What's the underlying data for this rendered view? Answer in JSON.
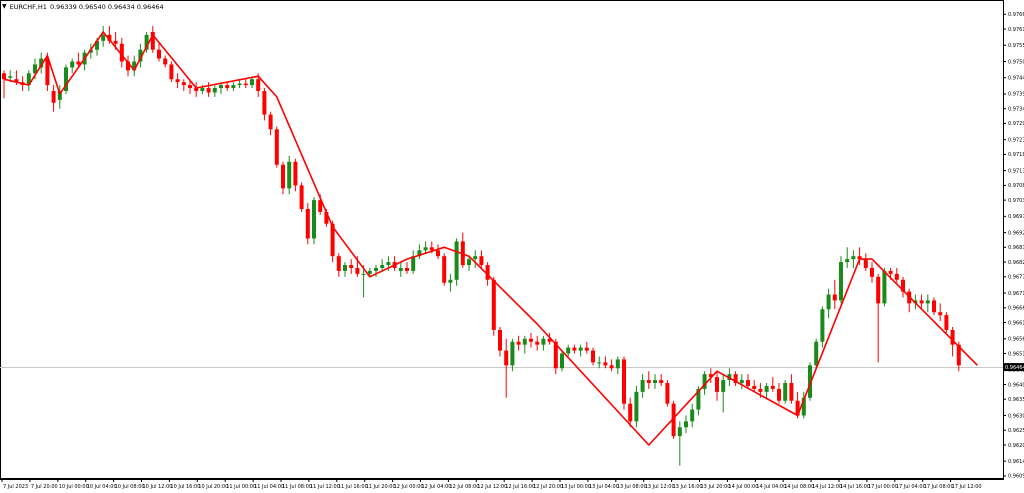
{
  "header": {
    "symbol": "EURCHF,H1",
    "ohlc": "0.96339 0.96540 0.96434 0.96464"
  },
  "colors": {
    "bull": "#1a8a1a",
    "bear": "#ff0000",
    "zigzag": "#ff0000",
    "grid": "#dddddd",
    "axis": "#000000",
    "price_tag_bg": "#000000"
  },
  "chart_data": {
    "type": "candlestick",
    "symbol": "EURCHF",
    "timeframe": "H1",
    "ylim": [
      0.96088,
      0.97661
    ],
    "last_price": 0.96464,
    "last_price_label": "0.96464",
    "y_ticks": [
      "0.97660",
      "0.97610",
      "0.97555",
      "0.97500",
      "0.97445",
      "0.97390",
      "0.97340",
      "0.97290",
      "0.97235",
      "0.97185",
      "0.97130",
      "0.97080",
      "0.97030",
      "0.96975",
      "0.96920",
      "0.96870",
      "0.96820",
      "0.96770",
      "0.96715",
      "0.96665",
      "0.96615",
      "0.96560",
      "0.96510",
      "0.96455",
      "0.96405",
      "0.96355",
      "0.96300",
      "0.96250",
      "0.96200",
      "0.96145",
      "0.96095"
    ],
    "x_ticks": [
      "7 Jul 2023",
      "7 Jul 20:00",
      "10 Jul 00:00",
      "10 Jul 04:00",
      "10 Jul 08:00",
      "10 Jul 12:00",
      "10 Jul 16:00",
      "10 Jul 20:00",
      "11 Jul 00:00",
      "11 Jul 04:00",
      "11 Jul 08:00",
      "11 Jul 12:00",
      "11 Jul 16:00",
      "11 Jul 20:00",
      "12 Jul 00:00",
      "12 Jul 04:00",
      "12 Jul 08:00",
      "12 Jul 12:00",
      "12 Jul 16:00",
      "12 Jul 20:00",
      "13 Jul 00:00",
      "13 Jul 04:00",
      "13 Jul 08:00",
      "13 Jul 12:00",
      "13 Jul 16:00",
      "13 Jul 20:00",
      "14 Jul 00:00",
      "14 Jul 04:00",
      "14 Jul 08:00",
      "14 Jul 12:00",
      "14 Jul 16:00",
      "17 Jul 00:00",
      "17 Jul 04:00",
      "17 Jul 08:00",
      "17 Jul 12:00"
    ],
    "zigzag": [
      [
        0,
        0.9744
      ],
      [
        4,
        0.9742
      ],
      [
        7,
        0.9752
      ],
      [
        9,
        0.9739
      ],
      [
        16,
        0.976
      ],
      [
        21,
        0.9747
      ],
      [
        24,
        0.9759
      ],
      [
        31,
        0.9741
      ],
      [
        41,
        0.9745
      ],
      [
        44,
        0.9738
      ],
      [
        53,
        0.9694
      ],
      [
        59,
        0.9677
      ],
      [
        65,
        0.9683
      ],
      [
        71,
        0.9687
      ],
      [
        75,
        0.9684
      ],
      [
        86,
        0.9661
      ],
      [
        104,
        0.962
      ],
      [
        115,
        0.9645
      ],
      [
        128,
        0.963
      ],
      [
        138,
        0.9683
      ],
      [
        140,
        0.9683
      ],
      [
        157,
        0.9647
      ]
    ],
    "candles": [
      [
        0.9746,
        0.9747,
        0.97375,
        0.9744
      ],
      [
        0.97445,
        0.9747,
        0.9743,
        0.9745
      ],
      [
        0.9744,
        0.9747,
        0.9742,
        0.9743
      ],
      [
        0.9743,
        0.9745,
        0.974,
        0.9742
      ],
      [
        0.9742,
        0.9747,
        0.974,
        0.9746
      ],
      [
        0.9746,
        0.9751,
        0.9744,
        0.9749
      ],
      [
        0.9748,
        0.9753,
        0.9746,
        0.9751
      ],
      [
        0.9751,
        0.9753,
        0.974,
        0.9742
      ],
      [
        0.974,
        0.9742,
        0.9733,
        0.9736
      ],
      [
        0.9737,
        0.9742,
        0.9734,
        0.974
      ],
      [
        0.974,
        0.9749,
        0.9739,
        0.9748
      ],
      [
        0.9748,
        0.9751,
        0.9746,
        0.975
      ],
      [
        0.975,
        0.9753,
        0.9748,
        0.9749
      ],
      [
        0.9749,
        0.9754,
        0.9747,
        0.9753
      ],
      [
        0.9753,
        0.9756,
        0.9751,
        0.9754
      ],
      [
        0.9754,
        0.9758,
        0.9752,
        0.9757
      ],
      [
        0.9757,
        0.9762,
        0.9755,
        0.9759
      ],
      [
        0.9759,
        0.9762,
        0.9756,
        0.9757
      ],
      [
        0.9757,
        0.976,
        0.9754,
        0.9756
      ],
      [
        0.9756,
        0.9758,
        0.9748,
        0.975
      ],
      [
        0.975,
        0.9752,
        0.9745,
        0.9747
      ],
      [
        0.9747,
        0.9752,
        0.9745,
        0.975
      ],
      [
        0.975,
        0.9756,
        0.9748,
        0.9754
      ],
      [
        0.9754,
        0.976,
        0.9753,
        0.9759
      ],
      [
        0.976,
        0.9762,
        0.9753,
        0.9754
      ],
      [
        0.9754,
        0.9756,
        0.975,
        0.9751
      ],
      [
        0.9751,
        0.9752,
        0.9748,
        0.9749
      ],
      [
        0.9749,
        0.975,
        0.9743,
        0.9744
      ],
      [
        0.9744,
        0.9746,
        0.9741,
        0.9743
      ],
      [
        0.9743,
        0.9744,
        0.974,
        0.9742
      ],
      [
        0.9742,
        0.9744,
        0.9739,
        0.9741
      ],
      [
        0.9741,
        0.9743,
        0.9738,
        0.974
      ],
      [
        0.974,
        0.9742,
        0.9739,
        0.9741
      ],
      [
        0.9741,
        0.9743,
        0.9738,
        0.97395
      ],
      [
        0.97395,
        0.9742,
        0.9738,
        0.9741
      ],
      [
        0.9741,
        0.9743,
        0.9739,
        0.9742
      ],
      [
        0.9742,
        0.9743,
        0.974,
        0.9741
      ],
      [
        0.9741,
        0.9743,
        0.974,
        0.9742
      ],
      [
        0.9742,
        0.9744,
        0.9741,
        0.97425
      ],
      [
        0.97425,
        0.9744,
        0.9741,
        0.9742
      ],
      [
        0.9742,
        0.9745,
        0.9741,
        0.9744
      ],
      [
        0.9744,
        0.9746,
        0.9738,
        0.974
      ],
      [
        0.974,
        0.9741,
        0.973,
        0.9732
      ],
      [
        0.9732,
        0.9733,
        0.9725,
        0.9727
      ],
      [
        0.9727,
        0.9728,
        0.9714,
        0.9715
      ],
      [
        0.9715,
        0.9716,
        0.9705,
        0.9707
      ],
      [
        0.9707,
        0.9718,
        0.9705,
        0.9716
      ],
      [
        0.9716,
        0.9717,
        0.9706,
        0.9708
      ],
      [
        0.9708,
        0.9709,
        0.9699,
        0.97
      ],
      [
        0.97,
        0.9702,
        0.9688,
        0.969
      ],
      [
        0.969,
        0.9704,
        0.9688,
        0.9703
      ],
      [
        0.9703,
        0.9705,
        0.9698,
        0.9699
      ],
      [
        0.9699,
        0.97,
        0.9694,
        0.9695
      ],
      [
        0.9695,
        0.9696,
        0.9682,
        0.9684
      ],
      [
        0.9684,
        0.9685,
        0.9677,
        0.9679
      ],
      [
        0.9679,
        0.9682,
        0.9677,
        0.9681
      ],
      [
        0.9681,
        0.9683,
        0.9678,
        0.968
      ],
      [
        0.968,
        0.9684,
        0.9677,
        0.9678
      ],
      [
        0.9678,
        0.9681,
        0.967,
        0.9678
      ],
      [
        0.9678,
        0.968,
        0.9677,
        0.9679
      ],
      [
        0.9679,
        0.9681,
        0.9677,
        0.968
      ],
      [
        0.968,
        0.9683,
        0.9679,
        0.9681
      ],
      [
        0.9681,
        0.9684,
        0.9679,
        0.9682
      ],
      [
        0.9682,
        0.9684,
        0.9679,
        0.968
      ],
      [
        0.9679,
        0.9682,
        0.9677,
        0.968
      ],
      [
        0.968,
        0.9682,
        0.9678,
        0.9679
      ],
      [
        0.9679,
        0.9686,
        0.9678,
        0.9684
      ],
      [
        0.9684,
        0.9688,
        0.9683,
        0.9686
      ],
      [
        0.9686,
        0.9689,
        0.9685,
        0.9687
      ],
      [
        0.9687,
        0.9689,
        0.9685,
        0.9686
      ],
      [
        0.9686,
        0.9688,
        0.9683,
        0.9684
      ],
      [
        0.9684,
        0.9685,
        0.9674,
        0.9675
      ],
      [
        0.9675,
        0.9678,
        0.9672,
        0.9676
      ],
      [
        0.9676,
        0.969,
        0.9674,
        0.9689
      ],
      [
        0.9689,
        0.9692,
        0.968,
        0.9681
      ],
      [
        0.9681,
        0.9684,
        0.9679,
        0.9683
      ],
      [
        0.9683,
        0.9686,
        0.968,
        0.9684
      ],
      [
        0.9684,
        0.9686,
        0.968,
        0.9681
      ],
      [
        0.9681,
        0.9682,
        0.9674,
        0.9676
      ],
      [
        0.9676,
        0.9677,
        0.9657,
        0.9659
      ],
      [
        0.9659,
        0.966,
        0.965,
        0.9652
      ],
      [
        0.9652,
        0.9656,
        0.9636,
        0.9647
      ],
      [
        0.9647,
        0.9656,
        0.9645,
        0.9655
      ],
      [
        0.9655,
        0.9657,
        0.9652,
        0.9654
      ],
      [
        0.9654,
        0.9657,
        0.9651,
        0.9656
      ],
      [
        0.9656,
        0.9658,
        0.9653,
        0.9655
      ],
      [
        0.9655,
        0.9657,
        0.9652,
        0.9654
      ],
      [
        0.9654,
        0.9657,
        0.9652,
        0.9656
      ],
      [
        0.9656,
        0.9658,
        0.9654,
        0.9655
      ],
      [
        0.9655,
        0.9656,
        0.9644,
        0.9646
      ],
      [
        0.9646,
        0.9652,
        0.9645,
        0.9651
      ],
      [
        0.9651,
        0.9654,
        0.965,
        0.9653
      ],
      [
        0.9653,
        0.9654,
        0.9651,
        0.9652
      ],
      [
        0.9652,
        0.9654,
        0.965,
        0.9653
      ],
      [
        0.9653,
        0.9655,
        0.9651,
        0.9652
      ],
      [
        0.9652,
        0.9653,
        0.9647,
        0.9648
      ],
      [
        0.9648,
        0.965,
        0.9646,
        0.9648
      ],
      [
        0.9648,
        0.965,
        0.9646,
        0.9647
      ],
      [
        0.9647,
        0.9649,
        0.9645,
        0.9646
      ],
      [
        0.9646,
        0.965,
        0.9644,
        0.9649
      ],
      [
        0.9649,
        0.965,
        0.9632,
        0.9634
      ],
      [
        0.9634,
        0.9636,
        0.9626,
        0.9628
      ],
      [
        0.9628,
        0.964,
        0.9626,
        0.9638
      ],
      [
        0.9638,
        0.9644,
        0.9636,
        0.9642
      ],
      [
        0.9642,
        0.9645,
        0.9639,
        0.9641
      ],
      [
        0.9641,
        0.9644,
        0.9639,
        0.9642
      ],
      [
        0.9642,
        0.9644,
        0.964,
        0.9641
      ],
      [
        0.9641,
        0.9642,
        0.9633,
        0.9634
      ],
      [
        0.9634,
        0.9635,
        0.9622,
        0.9623
      ],
      [
        0.9623,
        0.9628,
        0.9613,
        0.9626
      ],
      [
        0.9626,
        0.963,
        0.9624,
        0.9628
      ],
      [
        0.9628,
        0.9634,
        0.9626,
        0.9632
      ],
      [
        0.9632,
        0.964,
        0.963,
        0.9639
      ],
      [
        0.9639,
        0.9645,
        0.9637,
        0.9644
      ],
      [
        0.9644,
        0.9646,
        0.9641,
        0.9643
      ],
      [
        0.9643,
        0.9645,
        0.9635,
        0.9638
      ],
      [
        0.9638,
        0.9644,
        0.9631,
        0.9642
      ],
      [
        0.9642,
        0.9646,
        0.964,
        0.9644
      ],
      [
        0.9644,
        0.9645,
        0.964,
        0.9641
      ],
      [
        0.9641,
        0.9644,
        0.9639,
        0.9642
      ],
      [
        0.9642,
        0.9644,
        0.9639,
        0.964
      ],
      [
        0.964,
        0.9642,
        0.9638,
        0.9639
      ],
      [
        0.9639,
        0.9641,
        0.9636,
        0.9638
      ],
      [
        0.9638,
        0.9641,
        0.9636,
        0.964
      ],
      [
        0.964,
        0.9643,
        0.9638,
        0.9639
      ],
      [
        0.9639,
        0.9641,
        0.9634,
        0.9635
      ],
      [
        0.9635,
        0.9642,
        0.9634,
        0.9641
      ],
      [
        0.9641,
        0.9644,
        0.9634,
        0.9635
      ],
      [
        0.9635,
        0.9638,
        0.9629,
        0.963
      ],
      [
        0.963,
        0.9638,
        0.9629,
        0.9636
      ],
      [
        0.9636,
        0.9648,
        0.9635,
        0.9647
      ],
      [
        0.9647,
        0.9656,
        0.9646,
        0.9655
      ],
      [
        0.9655,
        0.9667,
        0.9653,
        0.9666
      ],
      [
        0.9666,
        0.9673,
        0.9663,
        0.9671
      ],
      [
        0.9671,
        0.9676,
        0.9666,
        0.9669
      ],
      [
        0.9669,
        0.9684,
        0.9668,
        0.9682
      ],
      [
        0.9682,
        0.9687,
        0.968,
        0.9683
      ],
      [
        0.9683,
        0.9686,
        0.968,
        0.9684
      ],
      [
        0.9684,
        0.9687,
        0.9681,
        0.9683
      ],
      [
        0.9683,
        0.9685,
        0.9679,
        0.968
      ],
      [
        0.968,
        0.9682,
        0.9675,
        0.9677
      ],
      [
        0.9677,
        0.9678,
        0.9648,
        0.9668
      ],
      [
        0.9668,
        0.968,
        0.9667,
        0.9679
      ],
      [
        0.9679,
        0.968,
        0.9676,
        0.9678
      ],
      [
        0.9678,
        0.968,
        0.9675,
        0.9676
      ],
      [
        0.9676,
        0.9677,
        0.967,
        0.9672
      ],
      [
        0.9672,
        0.9673,
        0.9665,
        0.9668
      ],
      [
        0.9668,
        0.9671,
        0.9666,
        0.9669
      ],
      [
        0.9669,
        0.9671,
        0.9666,
        0.9668
      ],
      [
        0.9668,
        0.9671,
        0.9665,
        0.9669
      ],
      [
        0.9669,
        0.967,
        0.9664,
        0.9665
      ],
      [
        0.9665,
        0.9668,
        0.9662,
        0.9664
      ],
      [
        0.9664,
        0.9665,
        0.9658,
        0.9659
      ],
      [
        0.9659,
        0.966,
        0.965,
        0.9654
      ],
      [
        0.9654,
        0.9655,
        0.9645,
        0.9647
      ]
    ]
  }
}
